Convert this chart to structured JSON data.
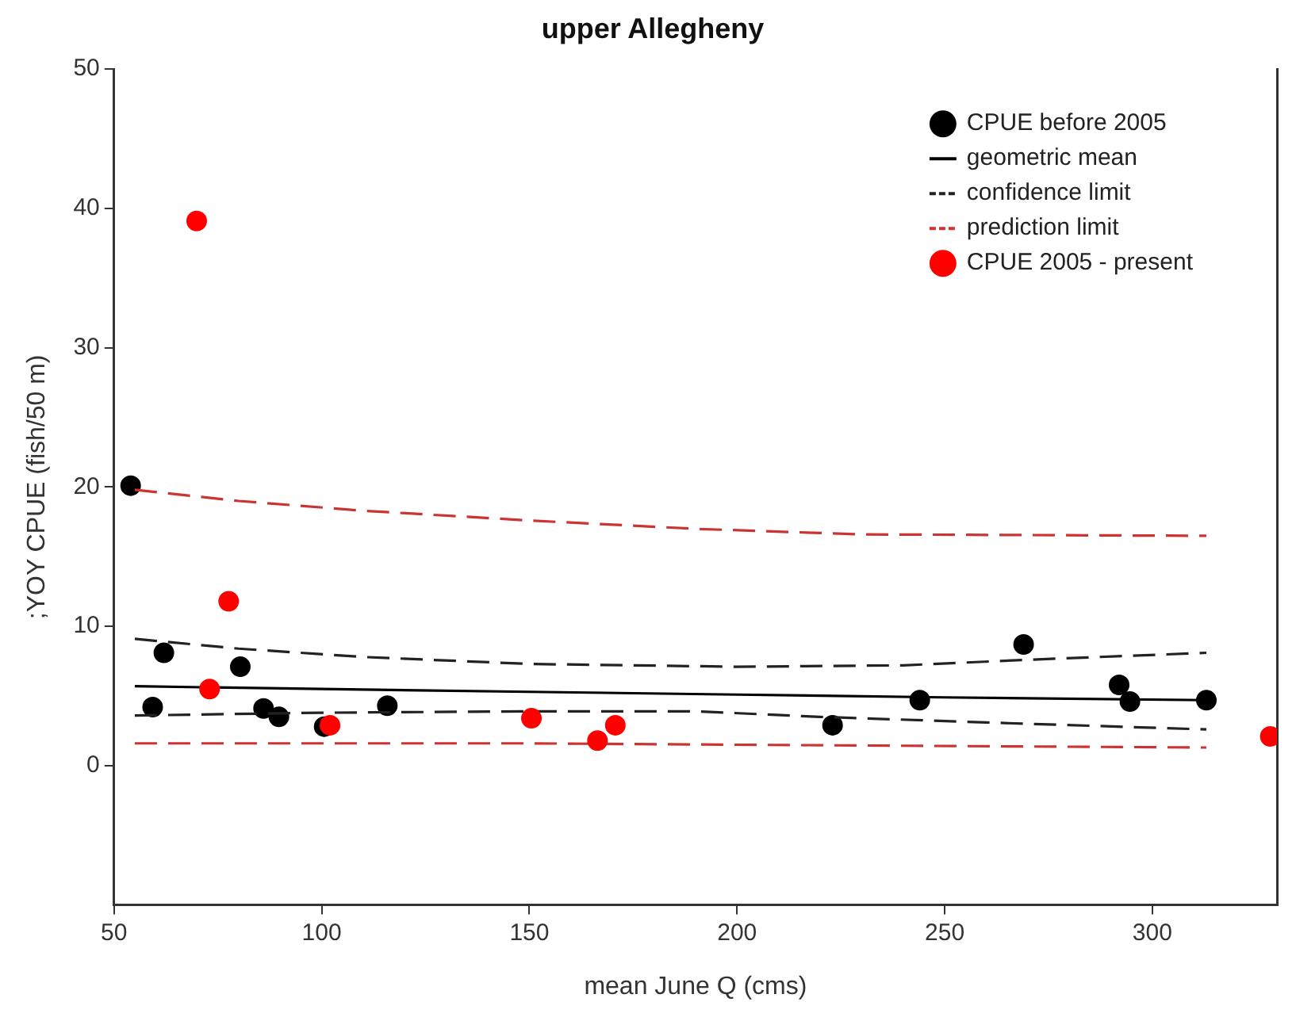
{
  "chart_data": {
    "type": "scatter",
    "title": "upper Allegheny",
    "xlabel": "mean June Q (cms)",
    "ylabel": ";YOY CPUE (fish/50 m)",
    "xlim": [
      50,
      330
    ],
    "xticks": [
      50,
      100,
      150,
      200,
      250,
      300
    ],
    "ylim": [
      -10,
      50
    ],
    "yticks": [
      0,
      10,
      20,
      30,
      40,
      50
    ],
    "grid": false,
    "legend": "top right",
    "marker": "circle",
    "series": [
      {
        "name": "CPUE before 2005",
        "type": "scatter",
        "color": "#000000",
        "x": [
          54,
          59.3,
          62,
          80.4,
          86,
          89.7,
          100.6,
          115.8,
          223,
          244,
          269,
          292,
          294.6,
          313
        ],
        "values": [
          20.1,
          4.2,
          8.1,
          7.1,
          4.1,
          3.5,
          2.8,
          4.3,
          2.9,
          4.7,
          8.7,
          5.8,
          4.6,
          4.7
        ]
      },
      {
        "name": "geometric mean",
        "type": "line",
        "marker": "none",
        "line_style": "solid",
        "color": "#000000",
        "x": [
          55,
          100,
          150,
          200,
          250,
          313
        ],
        "values": [
          5.7,
          5.5,
          5.3,
          5.1,
          4.9,
          4.7
        ]
      },
      {
        "name": "confidence limit",
        "type": "line",
        "marker": "none",
        "line_style": "dashed",
        "color": "#222222",
        "x": [
          55,
          80,
          110,
          150,
          200,
          240,
          270,
          313
        ],
        "values": [
          9.1,
          8.4,
          7.8,
          7.3,
          7.1,
          7.2,
          7.6,
          8.1
        ]
      },
      {
        "type": "line",
        "marker": "none",
        "line_style": "dashed",
        "color": "#222222",
        "x": [
          55,
          100,
          150,
          190,
          220,
          260,
          313
        ],
        "values": [
          3.6,
          3.8,
          3.9,
          3.9,
          3.5,
          3.1,
          2.6
        ]
      },
      {
        "name": "prediction limit",
        "type": "line",
        "marker": "none",
        "line_style": "dashed",
        "color": "#cc3333",
        "x": [
          55,
          80,
          110,
          150,
          190,
          230,
          313
        ],
        "values": [
          19.8,
          19.0,
          18.3,
          17.6,
          17.0,
          16.6,
          16.5
        ]
      },
      {
        "type": "line",
        "marker": "none",
        "line_style": "dashed",
        "color": "#cc3333",
        "x": [
          55,
          150,
          200,
          313
        ],
        "values": [
          1.6,
          1.6,
          1.5,
          1.3
        ]
      },
      {
        "name": "CPUE 2005 - present",
        "type": "scatter",
        "color": "#ff0000",
        "x": [
          69.9,
          73,
          77.6,
          102,
          150.5,
          166.4,
          170.7,
          328.4
        ],
        "values": [
          39.1,
          5.5,
          11.8,
          2.9,
          3.4,
          1.8,
          2.9,
          2.1
        ]
      }
    ]
  }
}
